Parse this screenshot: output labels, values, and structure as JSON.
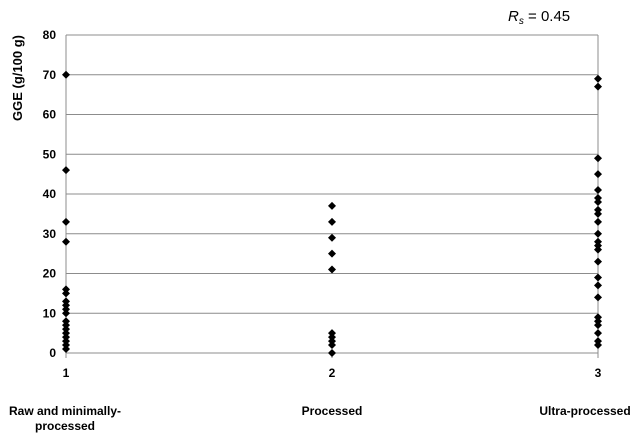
{
  "chart_data": {
    "type": "scatter",
    "ylabel": "GGE (g/100 g)",
    "xlabel": "",
    "ylim": [
      0,
      80
    ],
    "yticks": [
      0,
      10,
      20,
      30,
      40,
      50,
      60,
      70,
      80
    ],
    "xticks": [
      "1",
      "2",
      "3"
    ],
    "grid": "horizontal",
    "annotation": {
      "symbol": "R",
      "subscript": "s",
      "text": " = 0.45"
    },
    "categories": [
      {
        "tick": "1",
        "label": "Raw and minimally-processed"
      },
      {
        "tick": "2",
        "label": "Processed"
      },
      {
        "tick": "3",
        "label": "Ultra-processed"
      }
    ],
    "series": [
      {
        "marker": "diamond",
        "color": "#000000",
        "points": [
          {
            "x": 1,
            "y": 70
          },
          {
            "x": 1,
            "y": 46
          },
          {
            "x": 1,
            "y": 33
          },
          {
            "x": 1,
            "y": 28
          },
          {
            "x": 1,
            "y": 16
          },
          {
            "x": 1,
            "y": 15
          },
          {
            "x": 1,
            "y": 13
          },
          {
            "x": 1,
            "y": 12
          },
          {
            "x": 1,
            "y": 11
          },
          {
            "x": 1,
            "y": 10
          },
          {
            "x": 1,
            "y": 8
          },
          {
            "x": 1,
            "y": 7
          },
          {
            "x": 1,
            "y": 6
          },
          {
            "x": 1,
            "y": 5
          },
          {
            "x": 1,
            "y": 4
          },
          {
            "x": 1,
            "y": 3
          },
          {
            "x": 1,
            "y": 2
          },
          {
            "x": 1,
            "y": 1
          },
          {
            "x": 2,
            "y": 37
          },
          {
            "x": 2,
            "y": 33
          },
          {
            "x": 2,
            "y": 29
          },
          {
            "x": 2,
            "y": 25
          },
          {
            "x": 2,
            "y": 21
          },
          {
            "x": 2,
            "y": 5
          },
          {
            "x": 2,
            "y": 4
          },
          {
            "x": 2,
            "y": 3
          },
          {
            "x": 2,
            "y": 2
          },
          {
            "x": 2,
            "y": 0
          },
          {
            "x": 3,
            "y": 69
          },
          {
            "x": 3,
            "y": 67
          },
          {
            "x": 3,
            "y": 49
          },
          {
            "x": 3,
            "y": 45
          },
          {
            "x": 3,
            "y": 41
          },
          {
            "x": 3,
            "y": 39
          },
          {
            "x": 3,
            "y": 38
          },
          {
            "x": 3,
            "y": 36
          },
          {
            "x": 3,
            "y": 35
          },
          {
            "x": 3,
            "y": 33
          },
          {
            "x": 3,
            "y": 30
          },
          {
            "x": 3,
            "y": 28
          },
          {
            "x": 3,
            "y": 27
          },
          {
            "x": 3,
            "y": 26
          },
          {
            "x": 3,
            "y": 23
          },
          {
            "x": 3,
            "y": 19
          },
          {
            "x": 3,
            "y": 17
          },
          {
            "x": 3,
            "y": 14
          },
          {
            "x": 3,
            "y": 9
          },
          {
            "x": 3,
            "y": 8
          },
          {
            "x": 3,
            "y": 7
          },
          {
            "x": 3,
            "y": 5
          },
          {
            "x": 3,
            "y": 3
          },
          {
            "x": 3,
            "y": 2
          }
        ]
      }
    ]
  }
}
